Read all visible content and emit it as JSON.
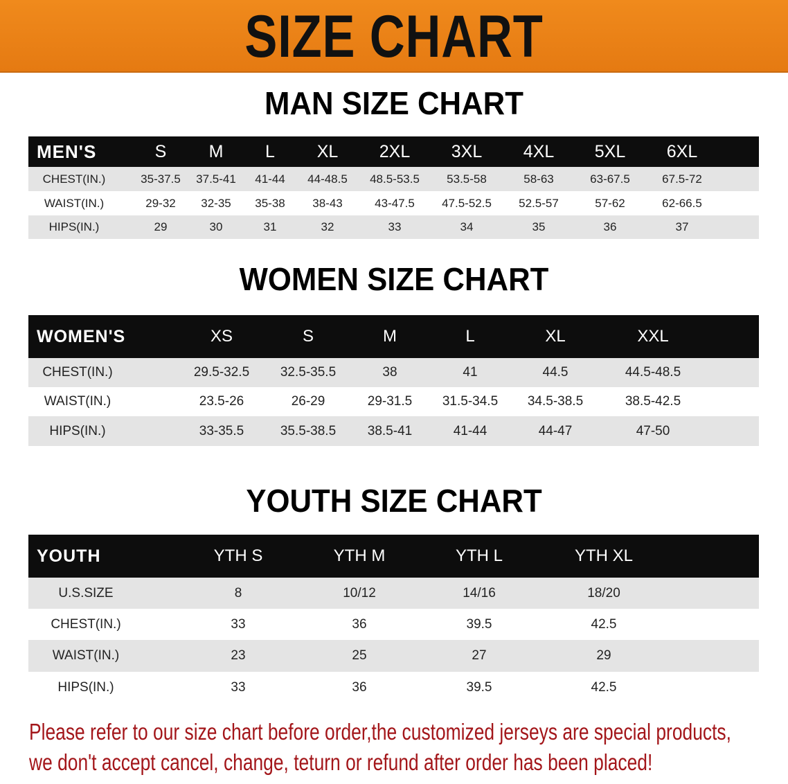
{
  "banner": {
    "title": "SIZE CHART",
    "color": "#ec8318"
  },
  "men": {
    "title": "MAN SIZE CHART",
    "header": [
      "MEN'S",
      "S",
      "M",
      "L",
      "XL",
      "2XL",
      "3XL",
      "4XL",
      "5XL",
      "6XL"
    ],
    "rows": [
      [
        "CHEST(IN.)",
        "35-37.5",
        "37.5-41",
        "41-44",
        "44-48.5",
        "48.5-53.5",
        "53.5-58",
        "58-63",
        "63-67.5",
        "67.5-72"
      ],
      [
        "WAIST(IN.)",
        "29-32",
        "32-35",
        "35-38",
        "38-43",
        "43-47.5",
        "47.5-52.5",
        "52.5-57",
        "57-62",
        "62-66.5"
      ],
      [
        "HIPS(IN.)",
        "29",
        "30",
        "31",
        "32",
        "33",
        "34",
        "35",
        "36",
        "37"
      ]
    ]
  },
  "women": {
    "title": "WOMEN SIZE CHART",
    "header": [
      "WOMEN'S",
      "XS",
      "S",
      "M",
      "L",
      "XL",
      "XXL"
    ],
    "rows": [
      [
        "CHEST(IN.)",
        "29.5-32.5",
        "32.5-35.5",
        "38",
        "41",
        "44.5",
        "44.5-48.5"
      ],
      [
        "WAIST(IN.)",
        "23.5-26",
        "26-29",
        "29-31.5",
        "31.5-34.5",
        "34.5-38.5",
        "38.5-42.5"
      ],
      [
        "HIPS(IN.)",
        "33-35.5",
        "35.5-38.5",
        "38.5-41",
        "41-44",
        "44-47",
        "47-50"
      ]
    ]
  },
  "youth": {
    "title": "YOUTH SIZE CHART",
    "header": [
      "YOUTH",
      "YTH S",
      "YTH M",
      "YTH L",
      "YTH XL"
    ],
    "rows": [
      [
        "U.S.SIZE",
        "8",
        "10/12",
        "14/16",
        "18/20"
      ],
      [
        "CHEST(IN.)",
        "33",
        "36",
        "39.5",
        "42.5"
      ],
      [
        "WAIST(IN.)",
        "23",
        "25",
        "27",
        "29"
      ],
      [
        "HIPS(IN.)",
        "33",
        "36",
        "39.5",
        "42.5"
      ]
    ]
  },
  "notice": {
    "line1": "Please refer to our size chart before order,the customized jerseys are special products,",
    "line2": "we don't accept cancel, change, teturn or refund after order has been placed!",
    "color": "#a3161a"
  }
}
